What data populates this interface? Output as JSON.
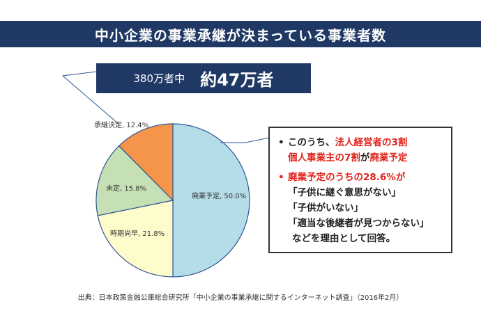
{
  "page": {
    "title": "中小企業の事業承継が決まっている事業者数",
    "total_label": "380万者中",
    "total_value": "約47万者",
    "source": "出典：日本政策金融公庫総合研究所「中小企業の事業承継に関するインターネット調査」（2016年2月）"
  },
  "chart_data": {
    "type": "pie",
    "start_angle": "top",
    "direction": "clockwise",
    "slices": [
      {
        "label": "廃業予定, 50.0%",
        "category": "廃業予定",
        "value": 50.0,
        "color": "#b4dde8"
      },
      {
        "label": "時期尚早, 21.8%",
        "category": "時期尚早",
        "value": 21.8,
        "color": "#fffccc"
      },
      {
        "label": "未定, 15.8%",
        "category": "未定",
        "value": 15.8,
        "color": "#c5e0b4"
      },
      {
        "label": "承継決定, 12.4%",
        "category": "承継決定",
        "value": 12.4,
        "color": "#f5954a"
      }
    ],
    "slice_border_color": "#2f5597",
    "legend": "none"
  },
  "note": {
    "bullet": "•",
    "line1_prefix": "このうち、",
    "line1_red": "法人経営者の3割",
    "line2_red": "個人事業主の7割",
    "line2_mid": "が",
    "line2_red2": "廃業予定",
    "line3_red": "廃業予定のうちの28.6%が",
    "line4": "「子供に継ぐ意思がない」",
    "line5": "「子供がいない」",
    "line6": "「適当な後継者が見つからない」",
    "line7": "などを理由として回答。"
  }
}
